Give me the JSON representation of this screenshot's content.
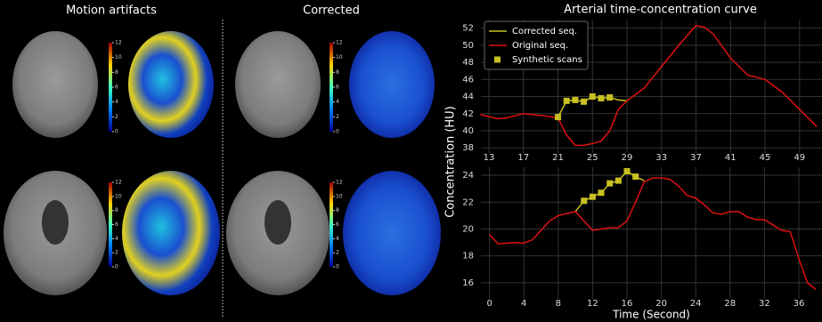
{
  "panels": {
    "left_title": "Motion artifacts",
    "right_title": "Corrected"
  },
  "colorbar": {
    "ticks": [
      0,
      2,
      4,
      6,
      8,
      10,
      12
    ]
  },
  "chart_data": [
    {
      "type": "line",
      "title": "Arterial time-concentration curve",
      "ylabel": "Concentration (HU)",
      "xlim": [
        12.07,
        51.6
      ],
      "ylim": [
        37.4,
        53.0
      ],
      "xticks": [
        13,
        17,
        21,
        25,
        29,
        33,
        37,
        41,
        45,
        49
      ],
      "yticks": [
        38,
        40,
        42,
        44,
        46,
        48,
        50,
        52
      ],
      "grid": true,
      "legend": "upper left",
      "series": [
        {
          "name": "Corrected seq.",
          "color": "#c8c020",
          "style": "line",
          "x": [
            21,
            22,
            23,
            24,
            25,
            26,
            27,
            28,
            29
          ],
          "values": [
            41.6,
            43.5,
            43.6,
            43.4,
            44.0,
            43.8,
            43.9,
            43.6,
            43.5
          ]
        },
        {
          "name": "Original seq.",
          "color": "#e01010",
          "style": "line",
          "x": [
            12,
            14,
            15,
            17,
            19,
            21,
            22,
            23,
            24,
            25,
            26,
            27,
            28,
            29,
            31,
            33,
            35,
            37,
            38,
            39,
            41,
            43,
            45,
            47,
            49,
            51
          ],
          "values": [
            41.9,
            41.4,
            41.5,
            42.0,
            41.8,
            41.5,
            39.5,
            38.3,
            38.3,
            38.5,
            38.8,
            40.0,
            42.5,
            43.5,
            45.0,
            47.5,
            50.0,
            52.3,
            52.1,
            51.3,
            48.5,
            46.5,
            46.0,
            44.5,
            42.5,
            40.5
          ]
        },
        {
          "name": "Synthetic scans",
          "color": "#c8c020",
          "style": "markers",
          "x": [
            21,
            22,
            23,
            24,
            25,
            26,
            27
          ],
          "values": [
            41.6,
            43.5,
            43.6,
            43.4,
            44.0,
            43.8,
            43.9
          ]
        }
      ]
    },
    {
      "type": "line",
      "xlabel": "Time (Second)",
      "xlim": [
        -1,
        38.7
      ],
      "ylim": [
        14.8,
        24.6
      ],
      "xticks": [
        0,
        4,
        8,
        12,
        16,
        20,
        24,
        28,
        32,
        36
      ],
      "yticks": [
        16,
        18,
        20,
        22,
        24
      ],
      "grid": true,
      "series": [
        {
          "color": "#c8c020",
          "style": "line",
          "x": [
            10,
            11,
            12,
            13,
            14,
            15,
            16,
            17,
            18
          ],
          "values": [
            21.3,
            22.1,
            22.4,
            22.7,
            23.4,
            23.6,
            24.3,
            23.9,
            23.6
          ]
        },
        {
          "color": "#e01010",
          "style": "line",
          "x": [
            0,
            1,
            3,
            4,
            5,
            7,
            8,
            10,
            11,
            12,
            13,
            14,
            15,
            16,
            17,
            18,
            19,
            20,
            21,
            22,
            23,
            24,
            25,
            26,
            27,
            28,
            29,
            30,
            31,
            32,
            33,
            34,
            35,
            36,
            37,
            38
          ],
          "values": [
            19.6,
            18.9,
            19.0,
            18.95,
            19.2,
            20.6,
            21.0,
            21.3,
            20.6,
            19.9,
            20.0,
            20.1,
            20.1,
            20.6,
            22.0,
            23.5,
            23.8,
            23.8,
            23.7,
            23.2,
            22.5,
            22.3,
            21.8,
            21.2,
            21.1,
            21.3,
            21.3,
            20.9,
            20.7,
            20.7,
            20.3,
            19.9,
            19.8,
            17.8,
            16.0,
            15.5
          ]
        },
        {
          "color": "#c8c020",
          "style": "markers",
          "x": [
            11,
            12,
            13,
            14,
            15,
            16,
            17
          ],
          "values": [
            22.1,
            22.4,
            22.7,
            23.4,
            23.6,
            24.3,
            23.9
          ]
        }
      ]
    }
  ]
}
